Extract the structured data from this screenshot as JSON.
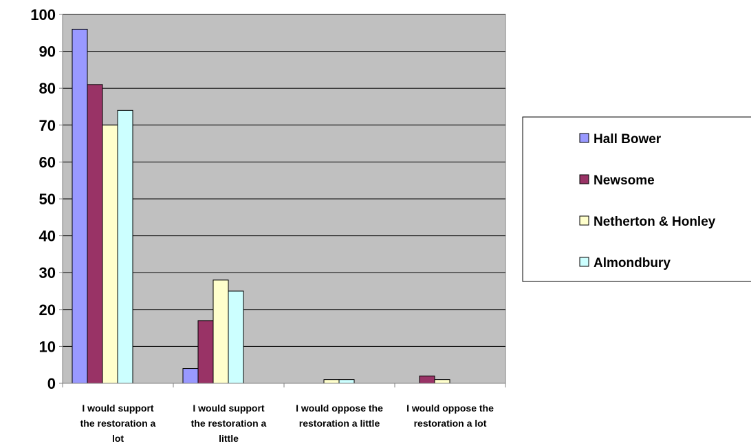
{
  "chart_data": {
    "type": "bar",
    "categories": [
      "I would support the restoration a lot",
      "I would support the restoration a little",
      "I would oppose the restoration a little",
      "I would oppose the restoration a lot"
    ],
    "category_label_lines": [
      [
        "I would support",
        "the restoration a",
        "lot"
      ],
      [
        "I would support",
        "the restoration a",
        "little"
      ],
      [
        "I would oppose the",
        "restoration a little"
      ],
      [
        "I would oppose the",
        "restoration a lot"
      ]
    ],
    "series": [
      {
        "name": "Hall Bower",
        "values": [
          96,
          4,
          0,
          0
        ],
        "color": "#9999FF"
      },
      {
        "name": "Newsome",
        "values": [
          81,
          17,
          0,
          2
        ],
        "color": "#993366"
      },
      {
        "name": "Netherton & Honley",
        "values": [
          70,
          28,
          1,
          1
        ],
        "color": "#FFFFCC"
      },
      {
        "name": "Almondbury",
        "values": [
          74,
          25,
          1,
          0
        ],
        "color": "#CCFFFF"
      }
    ],
    "ylim": [
      0,
      100
    ],
    "yticks": [
      "0",
      "10",
      "20",
      "30",
      "40",
      "50",
      "60",
      "70",
      "80",
      "90",
      "100"
    ],
    "grid": true,
    "plot_background": "#C0C0C0",
    "legend_position": "right",
    "title": "",
    "xlabel": "",
    "ylabel": ""
  }
}
